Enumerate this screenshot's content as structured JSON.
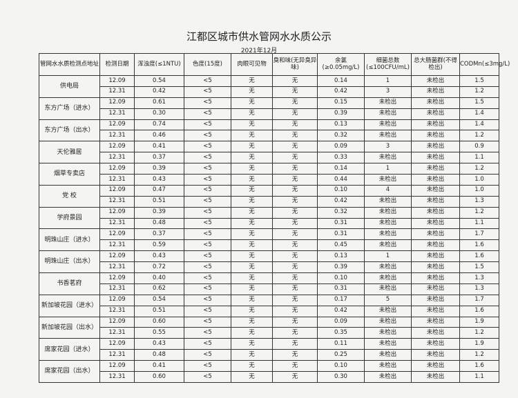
{
  "header": {
    "title": "江都区城市供水管网水水质公示",
    "subtitle": "2021年12月"
  },
  "table": {
    "columns": [
      "管网水水质检测点地址",
      "检测日期",
      "浑浊度(≤1NTU)",
      "色度(15度)",
      "肉眼可见物",
      "臭和味(无异臭异味)",
      "余氯(≥0.05mg/L)",
      "细菌总数(≤100CFU/mL)",
      "总大肠菌群(不得检出)",
      "CODMn(≤3mg/L)"
    ],
    "sites": [
      {
        "name": "供电局",
        "rows": [
          [
            "12.09",
            "0.54",
            "<5",
            "无",
            "无",
            "0.14",
            "1",
            "未检出",
            "1.5"
          ],
          [
            "12.31",
            "0.42",
            "<5",
            "无",
            "无",
            "0.42",
            "3",
            "未检出",
            "1.2"
          ]
        ]
      },
      {
        "name": "东方广场（进水）",
        "rows": [
          [
            "12.09",
            "0.61",
            "<5",
            "无",
            "无",
            "0.15",
            "未检出",
            "未检出",
            "1.5"
          ],
          [
            "12.31",
            "0.30",
            "<5",
            "无",
            "无",
            "0.39",
            "未检出",
            "未检出",
            "1.4"
          ]
        ]
      },
      {
        "name": "东方广场（出水）",
        "rows": [
          [
            "12.09",
            "0.74",
            "<5",
            "无",
            "无",
            "0.13",
            "未检出",
            "未检出",
            "1.4"
          ],
          [
            "12.31",
            "0.46",
            "<5",
            "无",
            "无",
            "0.32",
            "未检出",
            "未检出",
            "1.2"
          ]
        ]
      },
      {
        "name": "天伦雅居",
        "rows": [
          [
            "12.09",
            "0.41",
            "<5",
            "无",
            "无",
            "0.09",
            "3",
            "未检出",
            "0.9"
          ],
          [
            "12.31",
            "0.37",
            "<5",
            "无",
            "无",
            "0.33",
            "未检出",
            "未检出",
            "1.1"
          ]
        ]
      },
      {
        "name": "烟草专卖店",
        "rows": [
          [
            "12.09",
            "0.39",
            "<5",
            "无",
            "无",
            "0.14",
            "1",
            "未检出",
            "1.2"
          ],
          [
            "12.31",
            "0.43",
            "<5",
            "无",
            "无",
            "0.44",
            "未检出",
            "未检出",
            "1.0"
          ]
        ]
      },
      {
        "name": "党 校",
        "rows": [
          [
            "12.09",
            "0.47",
            "<5",
            "无",
            "无",
            "0.10",
            "4",
            "未检出",
            "1.0"
          ],
          [
            "12.31",
            "0.51",
            "<5",
            "无",
            "无",
            "0.42",
            "未检出",
            "未检出",
            "1.3"
          ]
        ]
      },
      {
        "name": "学府景园",
        "rows": [
          [
            "12.09",
            "0.39",
            "<5",
            "无",
            "无",
            "0.32",
            "未检出",
            "未检出",
            "1.2"
          ],
          [
            "12.31",
            "0.48",
            "<5",
            "无",
            "无",
            "0.31",
            "未检出",
            "未检出",
            "1.1"
          ]
        ]
      },
      {
        "name": "明珠山庄（进水）",
        "rows": [
          [
            "12.09",
            "0.37",
            "<5",
            "无",
            "无",
            "0.31",
            "未检出",
            "未检出",
            "1.7"
          ],
          [
            "12.31",
            "0.59",
            "<5",
            "无",
            "无",
            "0.45",
            "未检出",
            "未检出",
            "1.6"
          ]
        ]
      },
      {
        "name": "明珠山庄（出水）",
        "rows": [
          [
            "12.09",
            "0.43",
            "<5",
            "无",
            "无",
            "0.13",
            "1",
            "未检出",
            "1.6"
          ],
          [
            "12.31",
            "0.72",
            "<5",
            "无",
            "无",
            "0.39",
            "未检出",
            "未检出",
            "1.5"
          ]
        ]
      },
      {
        "name": "书香茗府",
        "rows": [
          [
            "12.09",
            "0.40",
            "<5",
            "无",
            "无",
            "0.10",
            "未检出",
            "未检出",
            "1.3"
          ],
          [
            "12.31",
            "0.62",
            "<5",
            "无",
            "无",
            "0.31",
            "未检出",
            "未检出",
            "1.3"
          ]
        ]
      },
      {
        "name": "新加坡花园（进水）",
        "rows": [
          [
            "12.09",
            "0.54",
            "<5",
            "无",
            "无",
            "0.17",
            "5",
            "未检出",
            "1.7"
          ],
          [
            "12.31",
            "0.51",
            "<5",
            "无",
            "无",
            "0.42",
            "未检出",
            "未检出",
            "1.6"
          ]
        ]
      },
      {
        "name": "新加坡花园（出水）",
        "rows": [
          [
            "12.09",
            "0.60",
            "<5",
            "无",
            "无",
            "0.09",
            "未检出",
            "未检出",
            "1.9"
          ],
          [
            "12.31",
            "0.55",
            "<5",
            "无",
            "无",
            "0.35",
            "未检出",
            "未检出",
            "1.2"
          ]
        ]
      },
      {
        "name": "席家花园（进水）",
        "rows": [
          [
            "12.09",
            "0.43",
            "<5",
            "无",
            "无",
            "0.11",
            "未检出",
            "未检出",
            "1.9"
          ],
          [
            "12.31",
            "0.48",
            "<5",
            "无",
            "无",
            "0.25",
            "未检出",
            "未检出",
            "1.2"
          ]
        ]
      },
      {
        "name": "席家花园（出水）",
        "rows": [
          [
            "12.09",
            "0.41",
            "<5",
            "无",
            "无",
            "0.10",
            "未检出",
            "未检出",
            "1.6"
          ],
          [
            "12.31",
            "0.60",
            "<5",
            "无",
            "无",
            "0.30",
            "未检出",
            "未检出",
            "1.1"
          ]
        ]
      }
    ]
  }
}
